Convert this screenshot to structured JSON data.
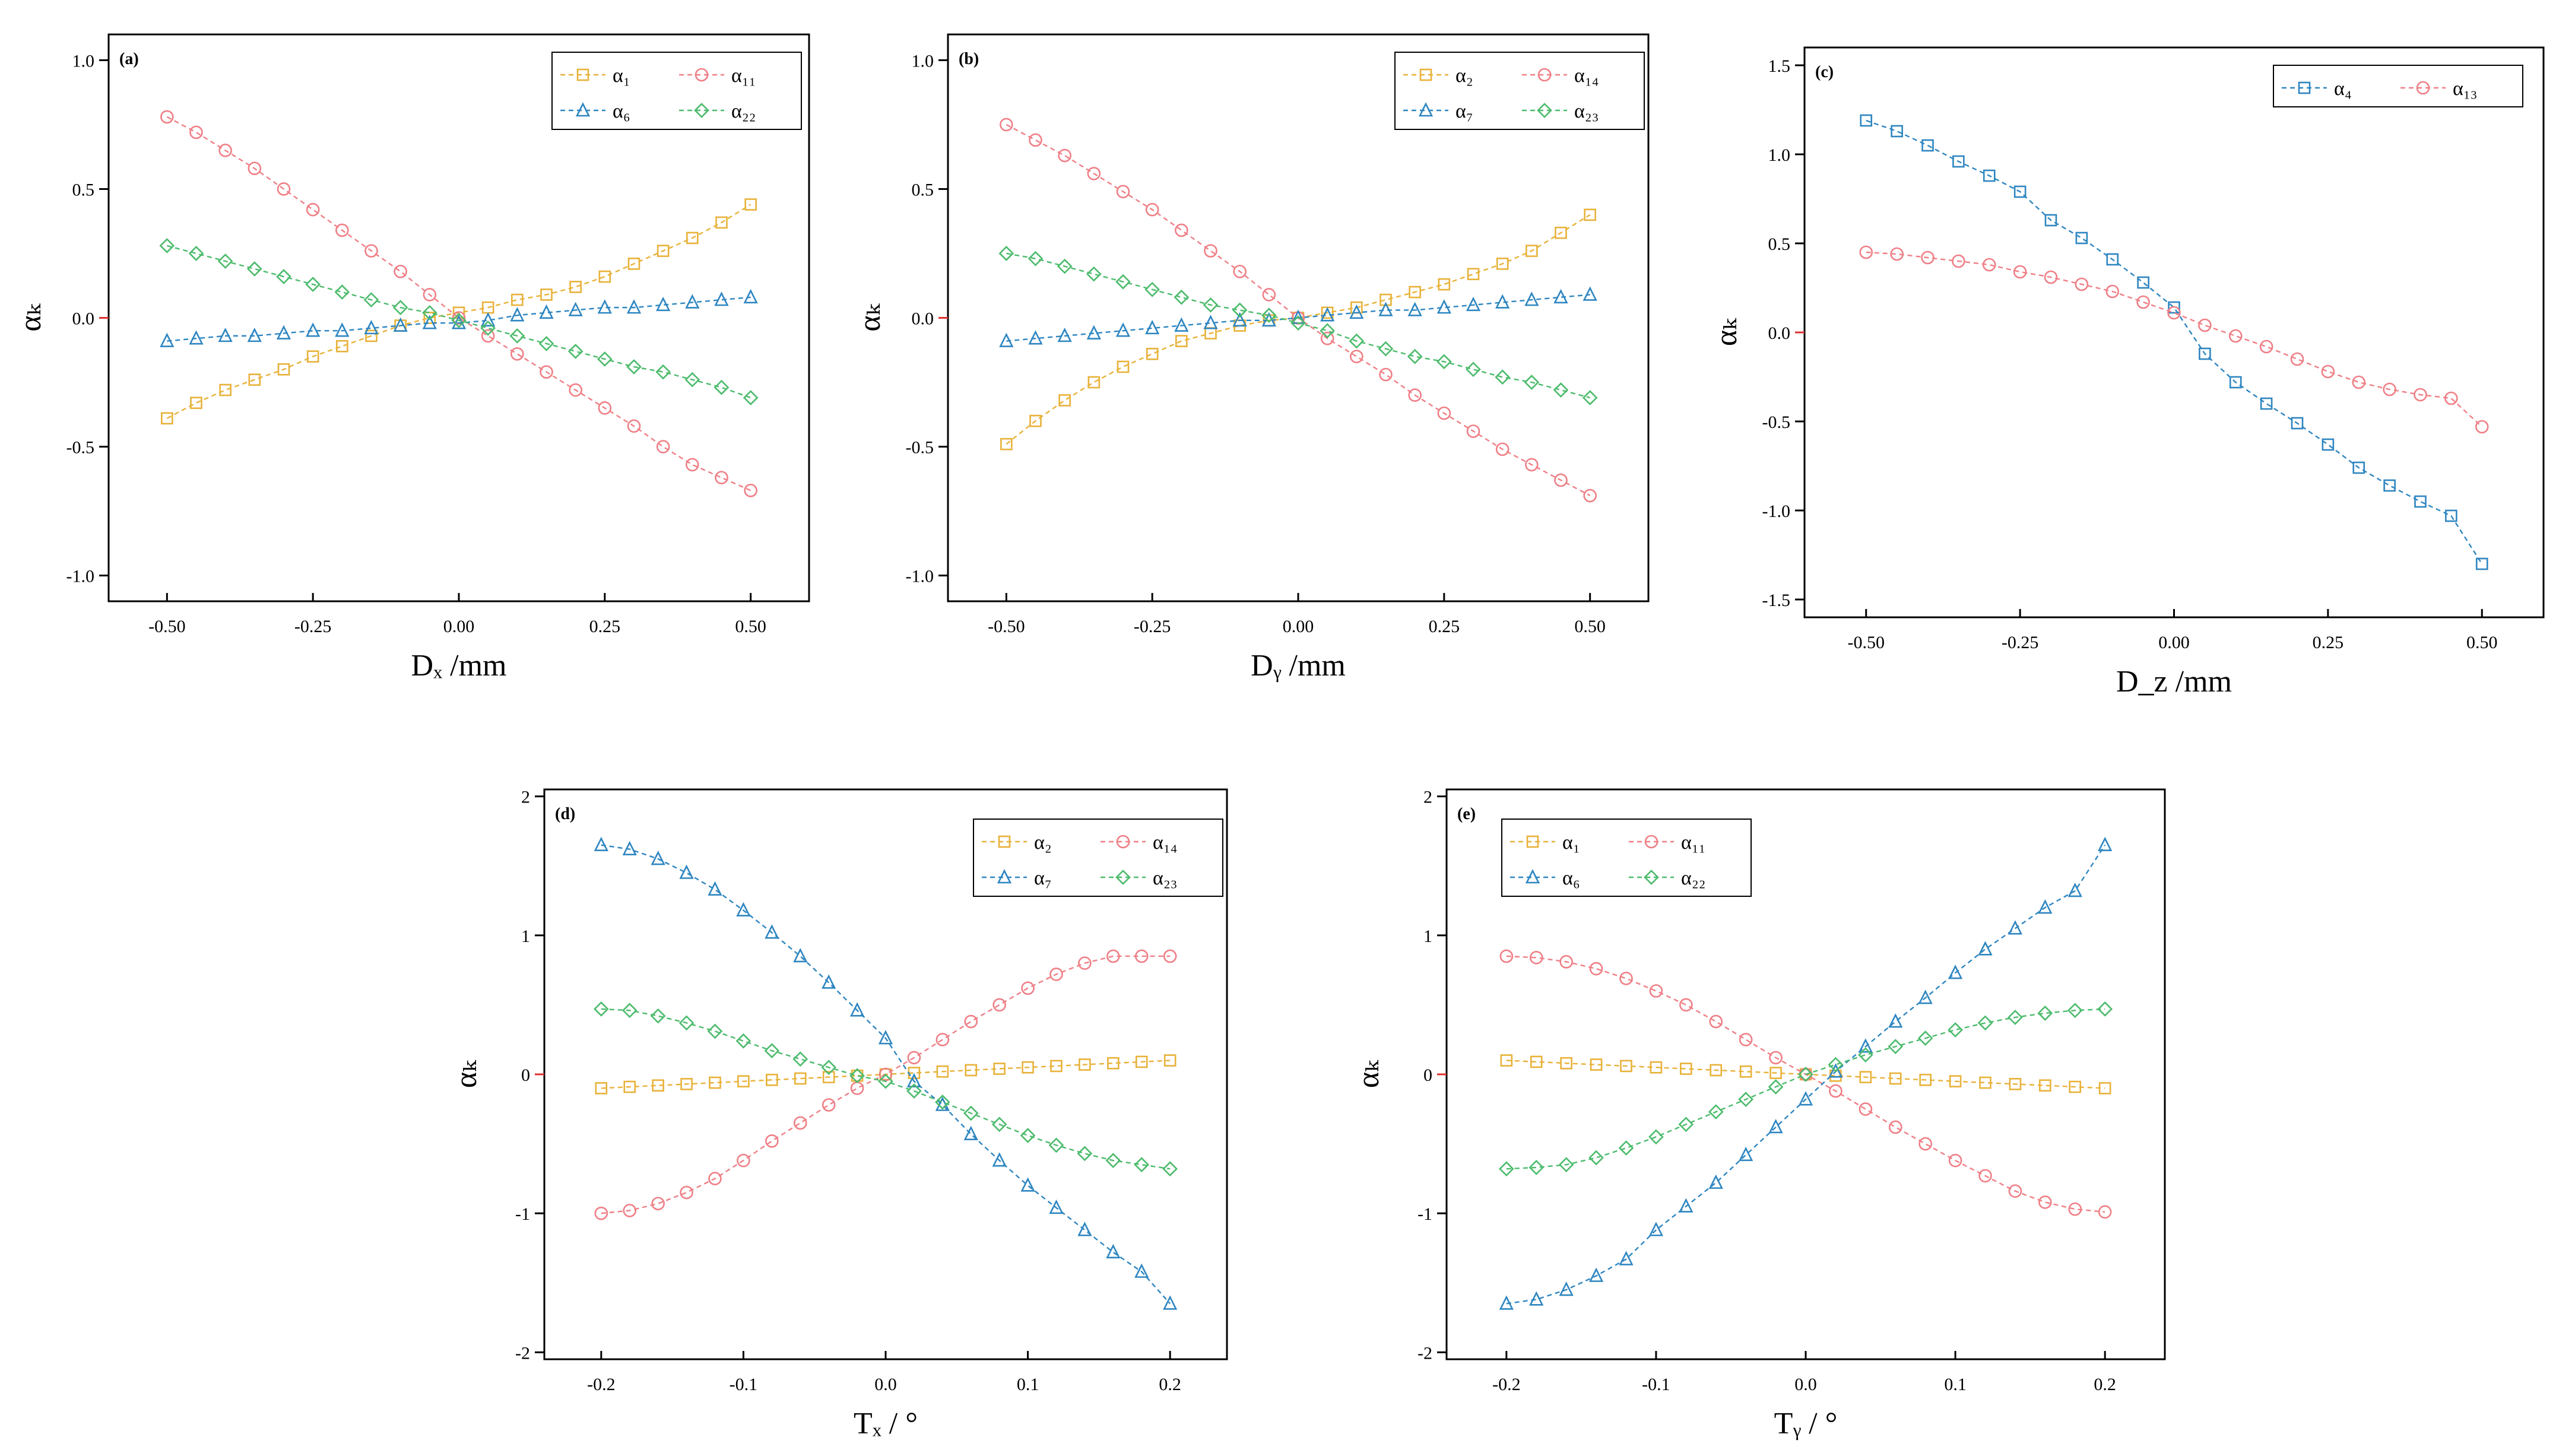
{
  "colors": {
    "yellow": "#E8B23A",
    "red": "#EF7F86",
    "blue": "#2E86C1",
    "green": "#4CBB6C",
    "axis": "#000000",
    "zero_tick": "#E03030"
  },
  "chart_data": [
    {
      "id": "a",
      "type": "line",
      "panel_label": "(a)",
      "title": "",
      "xlabel": "Dₓ /mm",
      "ylabel": "αₖ",
      "xlim": [
        -0.6,
        0.6
      ],
      "ylim": [
        -1.1,
        1.1
      ],
      "xticks": [
        -0.5,
        -0.25,
        0.0,
        0.25,
        0.5
      ],
      "xtick_labels": [
        "-0.50",
        "-0.25",
        "0.00",
        "0.25",
        "0.50"
      ],
      "yticks": [
        -1.0,
        -0.5,
        0.0,
        0.5,
        1.0
      ],
      "ytick_labels": [
        "-1.0",
        "-0.5",
        "0.0",
        "0.5",
        "1.0"
      ],
      "legend": "top-right",
      "x": [
        -0.5,
        -0.45,
        -0.4,
        -0.35,
        -0.3,
        -0.25,
        -0.2,
        -0.15,
        -0.1,
        -0.05,
        0.0,
        0.05,
        0.1,
        0.15,
        0.2,
        0.25,
        0.3,
        0.35,
        0.4,
        0.45,
        0.5
      ],
      "series": [
        {
          "name": "α₁",
          "color": "yellow",
          "marker": "square",
          "values": [
            -0.39,
            -0.33,
            -0.28,
            -0.24,
            -0.2,
            -0.15,
            -0.11,
            -0.07,
            -0.03,
            0.0,
            0.02,
            0.04,
            0.07,
            0.09,
            0.12,
            0.16,
            0.21,
            0.26,
            0.31,
            0.37,
            0.44
          ]
        },
        {
          "name": "α₁₁",
          "color": "red",
          "marker": "circle",
          "values": [
            0.78,
            0.72,
            0.65,
            0.58,
            0.5,
            0.42,
            0.34,
            0.26,
            0.18,
            0.09,
            0.0,
            -0.07,
            -0.14,
            -0.21,
            -0.28,
            -0.35,
            -0.42,
            -0.5,
            -0.57,
            -0.62,
            -0.67
          ]
        },
        {
          "name": "α₆",
          "color": "blue",
          "marker": "triangle",
          "values": [
            -0.09,
            -0.08,
            -0.07,
            -0.07,
            -0.06,
            -0.05,
            -0.05,
            -0.04,
            -0.03,
            -0.02,
            -0.02,
            -0.01,
            0.01,
            0.02,
            0.03,
            0.04,
            0.04,
            0.05,
            0.06,
            0.07,
            0.08
          ]
        },
        {
          "name": "α₂₂",
          "color": "green",
          "marker": "diamond",
          "values": [
            0.28,
            0.25,
            0.22,
            0.19,
            0.16,
            0.13,
            0.1,
            0.07,
            0.04,
            0.02,
            -0.01,
            -0.04,
            -0.07,
            -0.1,
            -0.13,
            -0.16,
            -0.19,
            -0.21,
            -0.24,
            -0.27,
            -0.31
          ]
        }
      ]
    },
    {
      "id": "b",
      "type": "line",
      "panel_label": "(b)",
      "title": "",
      "xlabel": "Dᵧ /mm",
      "ylabel": "αₖ",
      "xlim": [
        -0.6,
        0.6
      ],
      "ylim": [
        -1.1,
        1.1
      ],
      "xticks": [
        -0.5,
        -0.25,
        0.0,
        0.25,
        0.5
      ],
      "xtick_labels": [
        "-0.50",
        "-0.25",
        "0.00",
        "0.25",
        "0.50"
      ],
      "yticks": [
        -1.0,
        -0.5,
        0.0,
        0.5,
        1.0
      ],
      "ytick_labels": [
        "-1.0",
        "-0.5",
        "0.0",
        "0.5",
        "1.0"
      ],
      "legend": "top-right",
      "x": [
        -0.5,
        -0.45,
        -0.4,
        -0.35,
        -0.3,
        -0.25,
        -0.2,
        -0.15,
        -0.1,
        -0.05,
        0.0,
        0.05,
        0.1,
        0.15,
        0.2,
        0.25,
        0.3,
        0.35,
        0.4,
        0.45,
        0.5
      ],
      "series": [
        {
          "name": "α₂",
          "color": "yellow",
          "marker": "square",
          "values": [
            -0.49,
            -0.4,
            -0.32,
            -0.25,
            -0.19,
            -0.14,
            -0.09,
            -0.06,
            -0.03,
            -0.01,
            0.0,
            0.02,
            0.04,
            0.07,
            0.1,
            0.13,
            0.17,
            0.21,
            0.26,
            0.33,
            0.4
          ]
        },
        {
          "name": "α₁₄",
          "color": "red",
          "marker": "circle",
          "values": [
            0.75,
            0.69,
            0.63,
            0.56,
            0.49,
            0.42,
            0.34,
            0.26,
            0.18,
            0.09,
            0.0,
            -0.08,
            -0.15,
            -0.22,
            -0.3,
            -0.37,
            -0.44,
            -0.51,
            -0.57,
            -0.63,
            -0.69
          ]
        },
        {
          "name": "α₇",
          "color": "blue",
          "marker": "triangle",
          "values": [
            -0.09,
            -0.08,
            -0.07,
            -0.06,
            -0.05,
            -0.04,
            -0.03,
            -0.02,
            -0.01,
            -0.01,
            0.0,
            0.01,
            0.02,
            0.03,
            0.03,
            0.04,
            0.05,
            0.06,
            0.07,
            0.08,
            0.09
          ]
        },
        {
          "name": "α₂₃",
          "color": "green",
          "marker": "diamond",
          "values": [
            0.25,
            0.23,
            0.2,
            0.17,
            0.14,
            0.11,
            0.08,
            0.05,
            0.03,
            0.01,
            -0.02,
            -0.05,
            -0.09,
            -0.12,
            -0.15,
            -0.17,
            -0.2,
            -0.23,
            -0.25,
            -0.28,
            -0.31
          ]
        }
      ]
    },
    {
      "id": "c",
      "type": "line",
      "panel_label": "(c)",
      "title": "",
      "xlabel": "D_z /mm",
      "ylabel": "αₖ",
      "xlim": [
        -0.6,
        0.6
      ],
      "ylim": [
        -1.6,
        1.6
      ],
      "xticks": [
        -0.5,
        -0.25,
        0.0,
        0.25,
        0.5
      ],
      "xtick_labels": [
        "-0.50",
        "-0.25",
        "0.00",
        "0.25",
        "0.50"
      ],
      "yticks": [
        -1.5,
        -1.0,
        -0.5,
        0.0,
        0.5,
        1.0,
        1.5
      ],
      "ytick_labels": [
        "-1.5",
        "-1.0",
        "-0.5",
        "0.0",
        "0.5",
        "1.0",
        "1.5"
      ],
      "legend": "top-right",
      "x": [
        -0.5,
        -0.45,
        -0.4,
        -0.35,
        -0.3,
        -0.25,
        -0.2,
        -0.15,
        -0.1,
        -0.05,
        0.0,
        0.05,
        0.1,
        0.15,
        0.2,
        0.25,
        0.3,
        0.35,
        0.4,
        0.45,
        0.5
      ],
      "series": [
        {
          "name": "α₄",
          "color": "blue",
          "marker": "square",
          "values": [
            1.19,
            1.13,
            1.05,
            0.96,
            0.88,
            0.79,
            0.63,
            0.53,
            0.41,
            0.28,
            0.14,
            -0.12,
            -0.28,
            -0.4,
            -0.51,
            -0.63,
            -0.76,
            -0.86,
            -0.95,
            -1.03,
            -1.3
          ]
        },
        {
          "name": "α₁₃",
          "color": "red",
          "marker": "circle",
          "values": [
            0.45,
            0.44,
            0.42,
            0.4,
            0.38,
            0.34,
            0.31,
            0.27,
            0.23,
            0.17,
            0.11,
            0.04,
            -0.02,
            -0.08,
            -0.15,
            -0.22,
            -0.28,
            -0.32,
            -0.35,
            -0.37,
            -0.53
          ]
        }
      ]
    },
    {
      "id": "d",
      "type": "line",
      "panel_label": "(d)",
      "title": "",
      "xlabel": "Tₓ / °",
      "ylabel": "αₖ",
      "xlim": [
        -0.24,
        0.24
      ],
      "ylim": [
        -2.05,
        2.05
      ],
      "xticks": [
        -0.2,
        -0.1,
        0.0,
        0.1,
        0.2
      ],
      "xtick_labels": [
        "-0.2",
        "-0.1",
        "0.0",
        "0.1",
        "0.2"
      ],
      "yticks": [
        -2,
        -1,
        0,
        1,
        2
      ],
      "ytick_labels": [
        "-2",
        "-1",
        "0",
        "1",
        "2"
      ],
      "legend": "top-right",
      "x": [
        -0.2,
        -0.18,
        -0.16,
        -0.14,
        -0.12,
        -0.1,
        -0.08,
        -0.06,
        -0.04,
        -0.02,
        0.0,
        0.02,
        0.04,
        0.06,
        0.08,
        0.1,
        0.12,
        0.14,
        0.16,
        0.18,
        0.2
      ],
      "series": [
        {
          "name": "α₂",
          "color": "yellow",
          "marker": "square",
          "values": [
            -0.1,
            -0.09,
            -0.08,
            -0.07,
            -0.06,
            -0.05,
            -0.04,
            -0.03,
            -0.02,
            -0.01,
            0.0,
            0.01,
            0.02,
            0.03,
            0.04,
            0.05,
            0.06,
            0.07,
            0.08,
            0.09,
            0.1
          ]
        },
        {
          "name": "α₁₄",
          "color": "red",
          "marker": "circle",
          "values": [
            -1.0,
            -0.98,
            -0.93,
            -0.85,
            -0.75,
            -0.62,
            -0.48,
            -0.35,
            -0.22,
            -0.1,
            0.0,
            0.12,
            0.25,
            0.38,
            0.5,
            0.62,
            0.72,
            0.8,
            0.85,
            0.85,
            0.85
          ]
        },
        {
          "name": "α₇",
          "color": "blue",
          "marker": "triangle",
          "values": [
            1.65,
            1.62,
            1.55,
            1.45,
            1.33,
            1.18,
            1.02,
            0.85,
            0.66,
            0.46,
            0.26,
            -0.05,
            -0.22,
            -0.43,
            -0.62,
            -0.8,
            -0.96,
            -1.12,
            -1.28,
            -1.42,
            -1.65
          ]
        },
        {
          "name": "α₂₃",
          "color": "green",
          "marker": "diamond",
          "values": [
            0.47,
            0.46,
            0.42,
            0.37,
            0.31,
            0.24,
            0.17,
            0.11,
            0.05,
            -0.01,
            -0.05,
            -0.12,
            -0.2,
            -0.28,
            -0.36,
            -0.44,
            -0.51,
            -0.57,
            -0.62,
            -0.65,
            -0.68
          ]
        }
      ]
    },
    {
      "id": "e",
      "type": "line",
      "panel_label": "(e)",
      "title": "",
      "xlabel": "Tᵧ / °",
      "ylabel": "αₖ",
      "xlim": [
        -0.24,
        0.24
      ],
      "ylim": [
        -2.05,
        2.05
      ],
      "xticks": [
        -0.2,
        -0.1,
        0.0,
        0.1,
        0.2
      ],
      "xtick_labels": [
        "-0.2",
        "-0.1",
        "0.0",
        "0.1",
        "0.2"
      ],
      "yticks": [
        -2,
        -1,
        0,
        1,
        2
      ],
      "ytick_labels": [
        "-2",
        "-1",
        "0",
        "1",
        "2"
      ],
      "legend": "top-left",
      "x": [
        -0.2,
        -0.18,
        -0.16,
        -0.14,
        -0.12,
        -0.1,
        -0.08,
        -0.06,
        -0.04,
        -0.02,
        0.0,
        0.02,
        0.04,
        0.06,
        0.08,
        0.1,
        0.12,
        0.14,
        0.16,
        0.18,
        0.2
      ],
      "series": [
        {
          "name": "α₁",
          "color": "yellow",
          "marker": "square",
          "values": [
            0.1,
            0.09,
            0.08,
            0.07,
            0.06,
            0.05,
            0.04,
            0.03,
            0.02,
            0.01,
            0.0,
            -0.01,
            -0.02,
            -0.03,
            -0.04,
            -0.05,
            -0.06,
            -0.07,
            -0.08,
            -0.09,
            -0.1
          ]
        },
        {
          "name": "α₁₁",
          "color": "red",
          "marker": "circle",
          "values": [
            0.85,
            0.84,
            0.81,
            0.76,
            0.69,
            0.6,
            0.5,
            0.38,
            0.25,
            0.12,
            0.0,
            -0.12,
            -0.25,
            -0.38,
            -0.5,
            -0.62,
            -0.73,
            -0.84,
            -0.92,
            -0.97,
            -0.99
          ]
        },
        {
          "name": "α₆",
          "color": "blue",
          "marker": "triangle",
          "values": [
            -1.65,
            -1.62,
            -1.55,
            -1.45,
            -1.33,
            -1.12,
            -0.95,
            -0.78,
            -0.58,
            -0.38,
            -0.18,
            0.02,
            0.2,
            0.38,
            0.55,
            0.73,
            0.9,
            1.05,
            1.2,
            1.32,
            1.65
          ]
        },
        {
          "name": "α₂₂",
          "color": "green",
          "marker": "diamond",
          "values": [
            -0.68,
            -0.67,
            -0.65,
            -0.6,
            -0.53,
            -0.45,
            -0.36,
            -0.27,
            -0.18,
            -0.09,
            0.0,
            0.07,
            0.14,
            0.2,
            0.26,
            0.32,
            0.37,
            0.41,
            0.44,
            0.46,
            0.47
          ]
        }
      ]
    }
  ]
}
